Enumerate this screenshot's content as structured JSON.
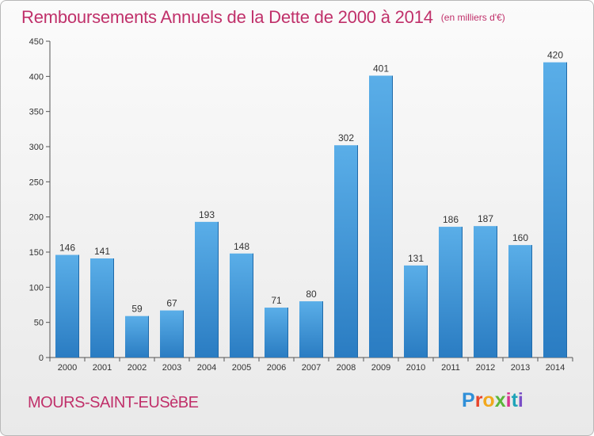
{
  "header": {
    "title": "Remboursements Annuels de la Dette de 2000 à 2014",
    "unit_note": "(en milliers d'€)"
  },
  "footer": {
    "place": "MOURS-SAINT-EUSèBE",
    "brand": "Proxiti"
  },
  "chart_data": {
    "type": "bar",
    "title": "Remboursements Annuels de la Dette de 2000 à 2014",
    "subtitle": "(en milliers d'€)",
    "xlabel": "",
    "ylabel": "",
    "ylim": [
      0,
      450
    ],
    "yticks": [
      0,
      50,
      100,
      150,
      200,
      250,
      300,
      350,
      400,
      450
    ],
    "grid": false,
    "categories": [
      "2000",
      "2001",
      "2002",
      "2003",
      "2004",
      "2005",
      "2006",
      "2007",
      "2008",
      "2009",
      "2010",
      "2011",
      "2012",
      "2013",
      "2014"
    ],
    "values": [
      146,
      141,
      59,
      67,
      193,
      148,
      71,
      80,
      302,
      401,
      131,
      186,
      187,
      160,
      420
    ],
    "colors": {
      "bar_top": "#5aaee8",
      "bar_bottom": "#2a7cc2",
      "axis": "#555555"
    }
  }
}
